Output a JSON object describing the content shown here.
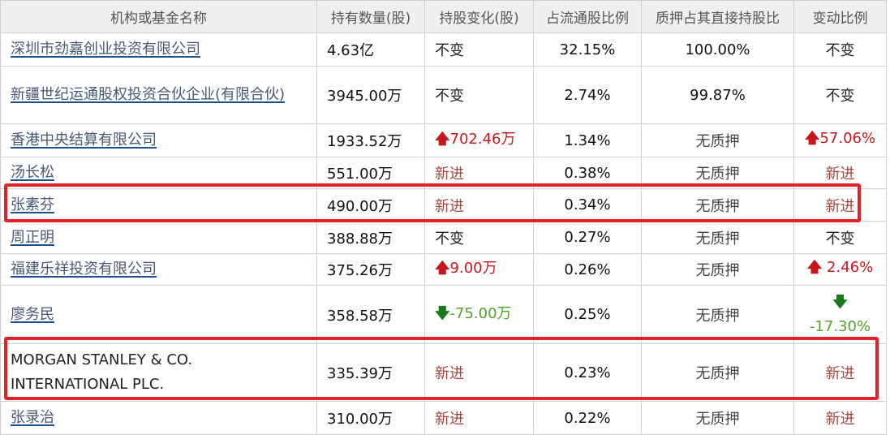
{
  "columns": [
    "机构或基金名称",
    "持有数量(股)",
    "持股变化(股)",
    "占流通股比例",
    "质押占其直接持股比",
    "变动比例"
  ],
  "rows": [
    {
      "name": "深圳市劲嘉创业投资有限公司",
      "link": true,
      "shares": "4.63亿",
      "change": "不变",
      "change_type": "same",
      "ratio": "32.15%",
      "pledge": "100.00%",
      "change_ratio": "不变",
      "ratio_type": "same"
    },
    {
      "name": "新疆世纪运通股权投资合伙企业(有限合伙)",
      "link": true,
      "shares": "3945.00万",
      "change": "不变",
      "change_type": "same",
      "ratio": "2.74%",
      "pledge": "99.87%",
      "change_ratio": "不变",
      "ratio_type": "same"
    },
    {
      "name": "香港中央结算有限公司",
      "link": true,
      "shares": "1933.52万",
      "change": "702.46万",
      "change_type": "up",
      "ratio": "1.34%",
      "pledge": "无质押",
      "change_ratio": "57.06%",
      "ratio_type": "up"
    },
    {
      "name": "汤长松",
      "link": true,
      "shares": "551.00万",
      "change": "新进",
      "change_type": "new",
      "ratio": "0.38%",
      "pledge": "无质押",
      "change_ratio": "新进",
      "ratio_type": "new"
    },
    {
      "name": "张素芬",
      "link": true,
      "shares": "490.00万",
      "change": "新进",
      "change_type": "new",
      "ratio": "0.34%",
      "pledge": "无质押",
      "change_ratio": "新进",
      "ratio_type": "new",
      "highlighted": true
    },
    {
      "name": "周正明",
      "link": true,
      "shares": "388.88万",
      "change": "不变",
      "change_type": "same",
      "ratio": "0.27%",
      "pledge": "无质押",
      "change_ratio": "不变",
      "ratio_type": "same"
    },
    {
      "name": "福建乐祥投资有限公司",
      "link": true,
      "shares": "375.26万",
      "change": "9.00万",
      "change_type": "up",
      "ratio": "0.26%",
      "pledge": "无质押",
      "change_ratio": " 2.46%",
      "ratio_type": "up"
    },
    {
      "name": "廖务民",
      "link": true,
      "shares": "358.58万",
      "change": "-75.00万",
      "change_type": "down",
      "ratio": "0.25%",
      "pledge": "无质押",
      "change_ratio": " -17.30%",
      "ratio_type": "down"
    },
    {
      "name": "MORGAN STANLEY & CO. INTERNATIONAL PLC.",
      "link": false,
      "shares": "335.39万",
      "change": "新进",
      "change_type": "new",
      "ratio": "0.23%",
      "pledge": "无质押",
      "change_ratio": "新进",
      "ratio_type": "new",
      "highlighted": true
    },
    {
      "name": "张录治",
      "link": true,
      "shares": "310.00万",
      "change": "新进",
      "change_type": "new",
      "ratio": "0.22%",
      "pledge": "无质押",
      "change_ratio": "新进",
      "ratio_type": "new"
    }
  ],
  "colors": {
    "highlight": "#e4202a",
    "up": "#c8161d",
    "down": "#4fa32a",
    "new": "#a0443c",
    "link": "#1d4f8a"
  }
}
